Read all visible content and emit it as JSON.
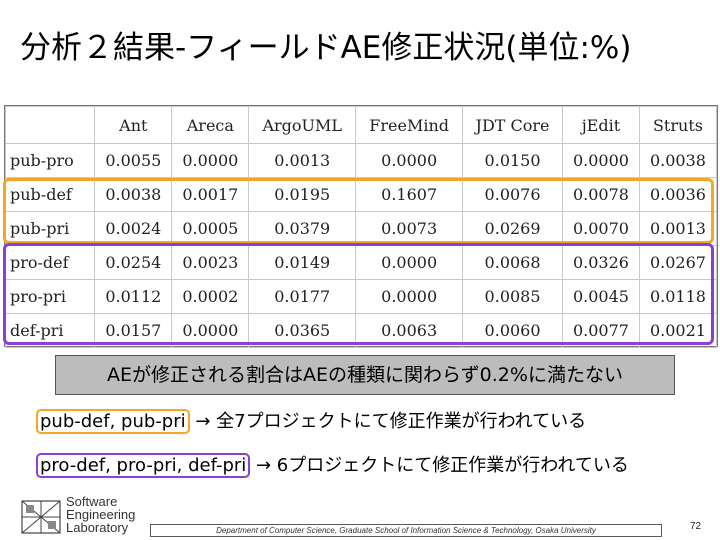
{
  "slide": {
    "title": "分析２結果-フィールドAE修正状況(単位:%)",
    "summary": "AEが修正される割合はAEの種類に関わらず0.2%に満たない",
    "notes": [
      {
        "tag": "pub-def, pub-pri",
        "text": " → 全7プロジェクトにて修正作業が行われている"
      },
      {
        "tag": "pro-def, pro-pri, def-pri",
        "text": " → 6プロジェクトにて修正作業が行われている"
      }
    ],
    "logo_text": [
      "Software",
      "Engineering",
      "Laboratory"
    ],
    "footer": "Department of Computer Science, Graduate School of Information Science & Technology, Osaka University",
    "page_number": "72"
  },
  "table": {
    "columns": [
      "",
      "Ant",
      "Areca",
      "ArgoUML",
      "FreeMind",
      "JDT Core",
      "jEdit",
      "Struts"
    ],
    "rows": [
      [
        "pub-pro",
        "0.0055",
        "0.0000",
        "0.0013",
        "0.0000",
        "0.0150",
        "0.0000",
        "0.0038"
      ],
      [
        "pub-def",
        "0.0038",
        "0.0017",
        "0.0195",
        "0.1607",
        "0.0076",
        "0.0078",
        "0.0036"
      ],
      [
        "pub-pri",
        "0.0024",
        "0.0005",
        "0.0379",
        "0.0073",
        "0.0269",
        "0.0070",
        "0.0013"
      ],
      [
        "pro-def",
        "0.0254",
        "0.0023",
        "0.0149",
        "0.0000",
        "0.0068",
        "0.0326",
        "0.0267"
      ],
      [
        "pro-pri",
        "0.0112",
        "0.0002",
        "0.0177",
        "0.0000",
        "0.0085",
        "0.0045",
        "0.0118"
      ],
      [
        "def-pri",
        "0.0157",
        "0.0000",
        "0.0365",
        "0.0063",
        "0.0060",
        "0.0077",
        "0.0021"
      ]
    ]
  },
  "colors": {
    "orange_highlight": "#f5a623",
    "purple_highlight": "#8a3fd6",
    "summary_bg": "#bcbcbc"
  }
}
